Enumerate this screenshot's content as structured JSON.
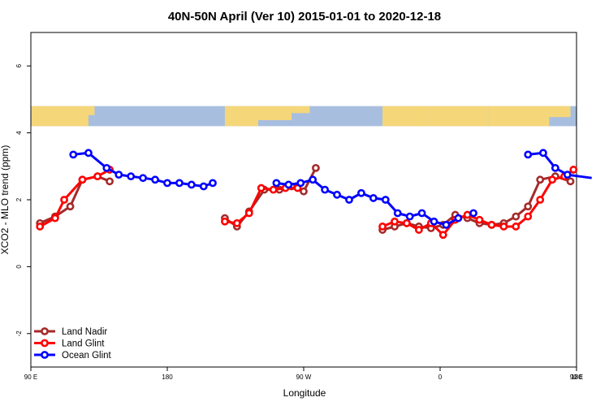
{
  "chart_data": {
    "type": "line",
    "title": "40N-50N April (Ver 10)   2015-01-01 to 2020-12-18",
    "xlabel": "Longitude",
    "ylabel": "XCO2 - MLO trend (ppm)",
    "xlim": [
      90,
      450
    ],
    "ylim": [
      -3,
      7
    ],
    "x_ticks": [
      {
        "value": 90,
        "label": "90 E"
      },
      {
        "value": 180,
        "label": "180"
      },
      {
        "value": 270,
        "label": "90 W"
      },
      {
        "value": 360,
        "label": "0"
      },
      {
        "value": 450,
        "label": "90 E"
      },
      {
        "value": 540,
        "label": "180"
      }
    ],
    "y_ticks": [
      {
        "value": -2,
        "label": "-2"
      },
      {
        "value": 0,
        "label": "0"
      },
      {
        "value": 2,
        "label": "2"
      },
      {
        "value": 4,
        "label": "4"
      },
      {
        "value": 6,
        "label": "6"
      }
    ],
    "map_band": {
      "y_top": 4.8,
      "y_bottom": 4.2,
      "land_color": "#f5d77a",
      "ocean_color": "#a8bedf"
    },
    "legend_position": "bottom-left",
    "series": [
      {
        "name": "Land Nadir",
        "color": "#a52a2a",
        "points": [
          [
            96,
            1.3
          ],
          [
            106,
            1.5
          ],
          [
            116,
            1.8
          ],
          [
            124,
            2.6
          ],
          [
            134,
            2.7
          ],
          [
            142,
            2.55
          ],
          [
            218,
            1.45
          ],
          [
            226,
            1.2
          ],
          [
            234,
            1.65
          ],
          [
            244,
            2.3
          ],
          [
            254,
            2.3
          ],
          [
            262,
            2.4
          ],
          [
            270,
            2.25
          ],
          [
            278,
            2.95
          ],
          [
            322,
            1.1
          ],
          [
            330,
            1.2
          ],
          [
            338,
            1.3
          ],
          [
            346,
            1.2
          ],
          [
            354,
            1.15
          ],
          [
            362,
            1.25
          ],
          [
            370,
            1.55
          ],
          [
            378,
            1.45
          ],
          [
            386,
            1.3
          ],
          [
            394,
            1.25
          ],
          [
            402,
            1.3
          ],
          [
            410,
            1.5
          ],
          [
            418,
            1.8
          ],
          [
            426,
            2.6
          ],
          [
            436,
            2.7
          ],
          [
            446,
            2.55
          ]
        ],
        "segments": [
          [
            0,
            5
          ],
          [
            6,
            13
          ],
          [
            14,
            29
          ]
        ]
      },
      {
        "name": "Land Glint",
        "color": "#ff0000",
        "points": [
          [
            96,
            1.2
          ],
          [
            106,
            1.45
          ],
          [
            112,
            2.0
          ],
          [
            124,
            2.6
          ],
          [
            134,
            2.7
          ],
          [
            142,
            2.9
          ],
          [
            218,
            1.35
          ],
          [
            226,
            1.3
          ],
          [
            234,
            1.6
          ],
          [
            242,
            2.35
          ],
          [
            250,
            2.3
          ],
          [
            258,
            2.35
          ],
          [
            266,
            2.35
          ],
          [
            322,
            1.2
          ],
          [
            330,
            1.35
          ],
          [
            338,
            1.3
          ],
          [
            346,
            1.1
          ],
          [
            354,
            1.3
          ],
          [
            362,
            0.95
          ],
          [
            370,
            1.4
          ],
          [
            378,
            1.55
          ],
          [
            386,
            1.4
          ],
          [
            394,
            1.25
          ],
          [
            402,
            1.2
          ],
          [
            410,
            1.2
          ],
          [
            418,
            1.5
          ],
          [
            426,
            2.0
          ],
          [
            434,
            2.6
          ],
          [
            442,
            2.7
          ],
          [
            448,
            2.9
          ]
        ],
        "segments": [
          [
            0,
            5
          ],
          [
            6,
            12
          ],
          [
            13,
            29
          ]
        ]
      },
      {
        "name": "Ocean Glint",
        "color": "#0000ff",
        "points": [
          [
            118,
            3.35
          ],
          [
            128,
            3.4
          ],
          [
            140,
            2.95
          ],
          [
            148,
            2.75
          ],
          [
            156,
            2.7
          ],
          [
            164,
            2.65
          ],
          [
            172,
            2.6
          ],
          [
            180,
            2.5
          ],
          [
            188,
            2.5
          ],
          [
            196,
            2.45
          ],
          [
            204,
            2.4
          ],
          [
            210,
            2.5
          ],
          [
            252,
            2.5
          ],
          [
            260,
            2.45
          ],
          [
            268,
            2.5
          ],
          [
            276,
            2.6
          ],
          [
            284,
            2.3
          ],
          [
            292,
            2.15
          ],
          [
            300,
            2.0
          ],
          [
            308,
            2.2
          ],
          [
            316,
            2.05
          ],
          [
            324,
            2.0
          ],
          [
            332,
            1.6
          ],
          [
            340,
            1.5
          ],
          [
            348,
            1.6
          ],
          [
            356,
            1.35
          ],
          [
            364,
            1.25
          ],
          [
            372,
            1.45
          ],
          [
            382,
            1.6
          ],
          [
            418,
            3.35
          ],
          [
            428,
            3.4
          ],
          [
            436,
            2.95
          ],
          [
            444,
            2.75
          ],
          [
            452,
            2.7
          ],
          [
            460,
            2.65
          ]
        ],
        "segments": [
          [
            0,
            11
          ],
          [
            12,
            27
          ],
          [
            29,
            34
          ]
        ]
      }
    ]
  }
}
